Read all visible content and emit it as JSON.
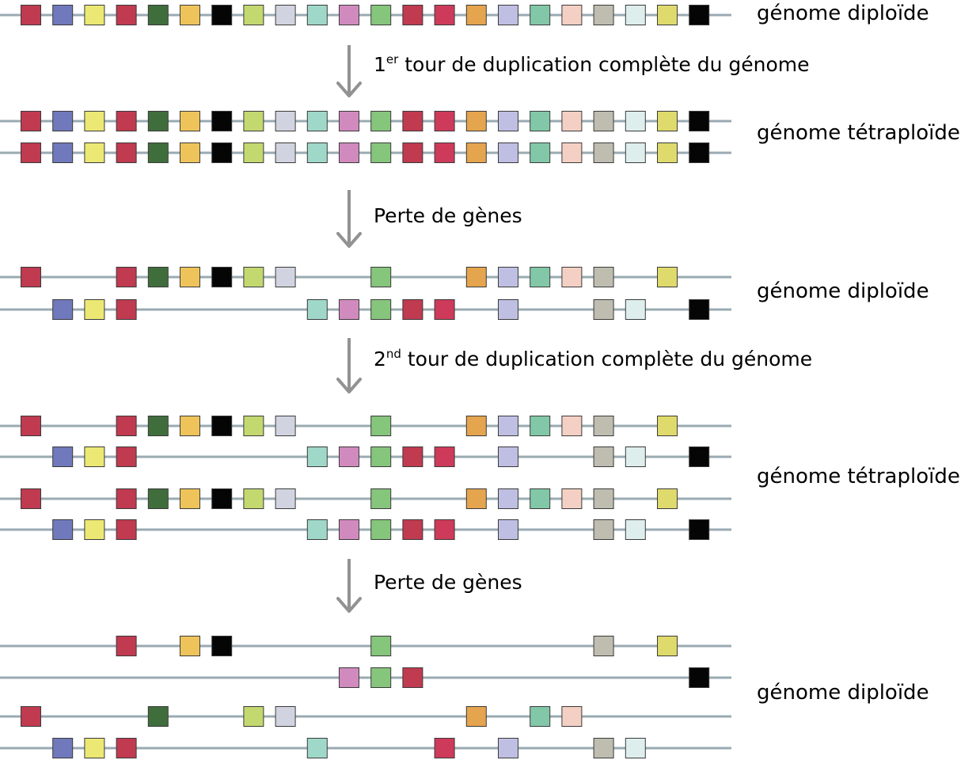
{
  "colors": {
    "line": "#9aaab2",
    "arrow": "#929292",
    "stroke": "#3a3a3a",
    "palette": [
      "#c03a50",
      "#7079bb",
      "#ece874",
      "#c03a50",
      "#3f6e3c",
      "#eec45a",
      "#050505",
      "#c4d870",
      "#d1d4e0",
      "#9fd8c8",
      "#d18abe",
      "#86c57c",
      "#c03a50",
      "#ce3a5a",
      "#e5a44e",
      "#bfbfe3",
      "#82c8a8",
      "#f4d0c4",
      "#bebdb0",
      "#ddeeed",
      "#dfda6c",
      "#050505"
    ]
  },
  "labels": {
    "genome1": "génome diploïde",
    "genome2": "génome tétraploïde",
    "genome3": "génome diploïde",
    "genome4": "génome tétraploïde",
    "genome5": "génome diploïde"
  },
  "steps": {
    "step1": {
      "number": "1",
      "superscript": "er",
      "text": " tour de duplication complète du génome"
    },
    "step2": {
      "text": "Perte de gènes"
    },
    "step3": {
      "number": "2",
      "superscript": "nd",
      "text": " tour de duplication complète du génome"
    },
    "step4": {
      "text": "Perte de gènes"
    }
  },
  "rows": [
    {
      "stage": "genome1",
      "genes": [
        0,
        1,
        2,
        3,
        4,
        5,
        6,
        7,
        8,
        9,
        10,
        11,
        12,
        13,
        14,
        15,
        16,
        17,
        18,
        19,
        20,
        21
      ]
    },
    {
      "stage": "genome2",
      "genes": [
        0,
        1,
        2,
        3,
        4,
        5,
        6,
        7,
        8,
        9,
        10,
        11,
        12,
        13,
        14,
        15,
        16,
        17,
        18,
        19,
        20,
        21
      ]
    },
    {
      "stage": "genome2",
      "genes": [
        0,
        1,
        2,
        3,
        4,
        5,
        6,
        7,
        8,
        9,
        10,
        11,
        12,
        13,
        14,
        15,
        16,
        17,
        18,
        19,
        20,
        21
      ]
    },
    {
      "stage": "genome3",
      "genes": [
        0,
        3,
        4,
        5,
        6,
        7,
        8,
        11,
        14,
        15,
        16,
        17,
        18,
        20
      ]
    },
    {
      "stage": "genome3",
      "genes": [
        1,
        2,
        3,
        9,
        10,
        11,
        12,
        13,
        15,
        18,
        19,
        21
      ]
    },
    {
      "stage": "genome4",
      "genes": [
        0,
        3,
        4,
        5,
        6,
        7,
        8,
        11,
        14,
        15,
        16,
        17,
        18,
        20
      ]
    },
    {
      "stage": "genome4",
      "genes": [
        1,
        2,
        3,
        9,
        10,
        11,
        12,
        13,
        15,
        18,
        19,
        21
      ]
    },
    {
      "stage": "genome4",
      "genes": [
        0,
        3,
        4,
        5,
        6,
        7,
        8,
        11,
        14,
        15,
        16,
        17,
        18,
        20
      ]
    },
    {
      "stage": "genome4",
      "genes": [
        1,
        2,
        3,
        9,
        10,
        11,
        12,
        13,
        15,
        18,
        19,
        21
      ]
    },
    {
      "stage": "genome5",
      "genes": [
        3,
        5,
        6,
        11,
        18,
        20
      ]
    },
    {
      "stage": "genome5",
      "genes": [
        10,
        11,
        12,
        21
      ]
    },
    {
      "stage": "genome5",
      "genes": [
        0,
        4,
        7,
        8,
        14,
        16,
        17
      ]
    },
    {
      "stage": "genome5",
      "genes": [
        1,
        2,
        3,
        9,
        13,
        15,
        18,
        19
      ]
    }
  ]
}
